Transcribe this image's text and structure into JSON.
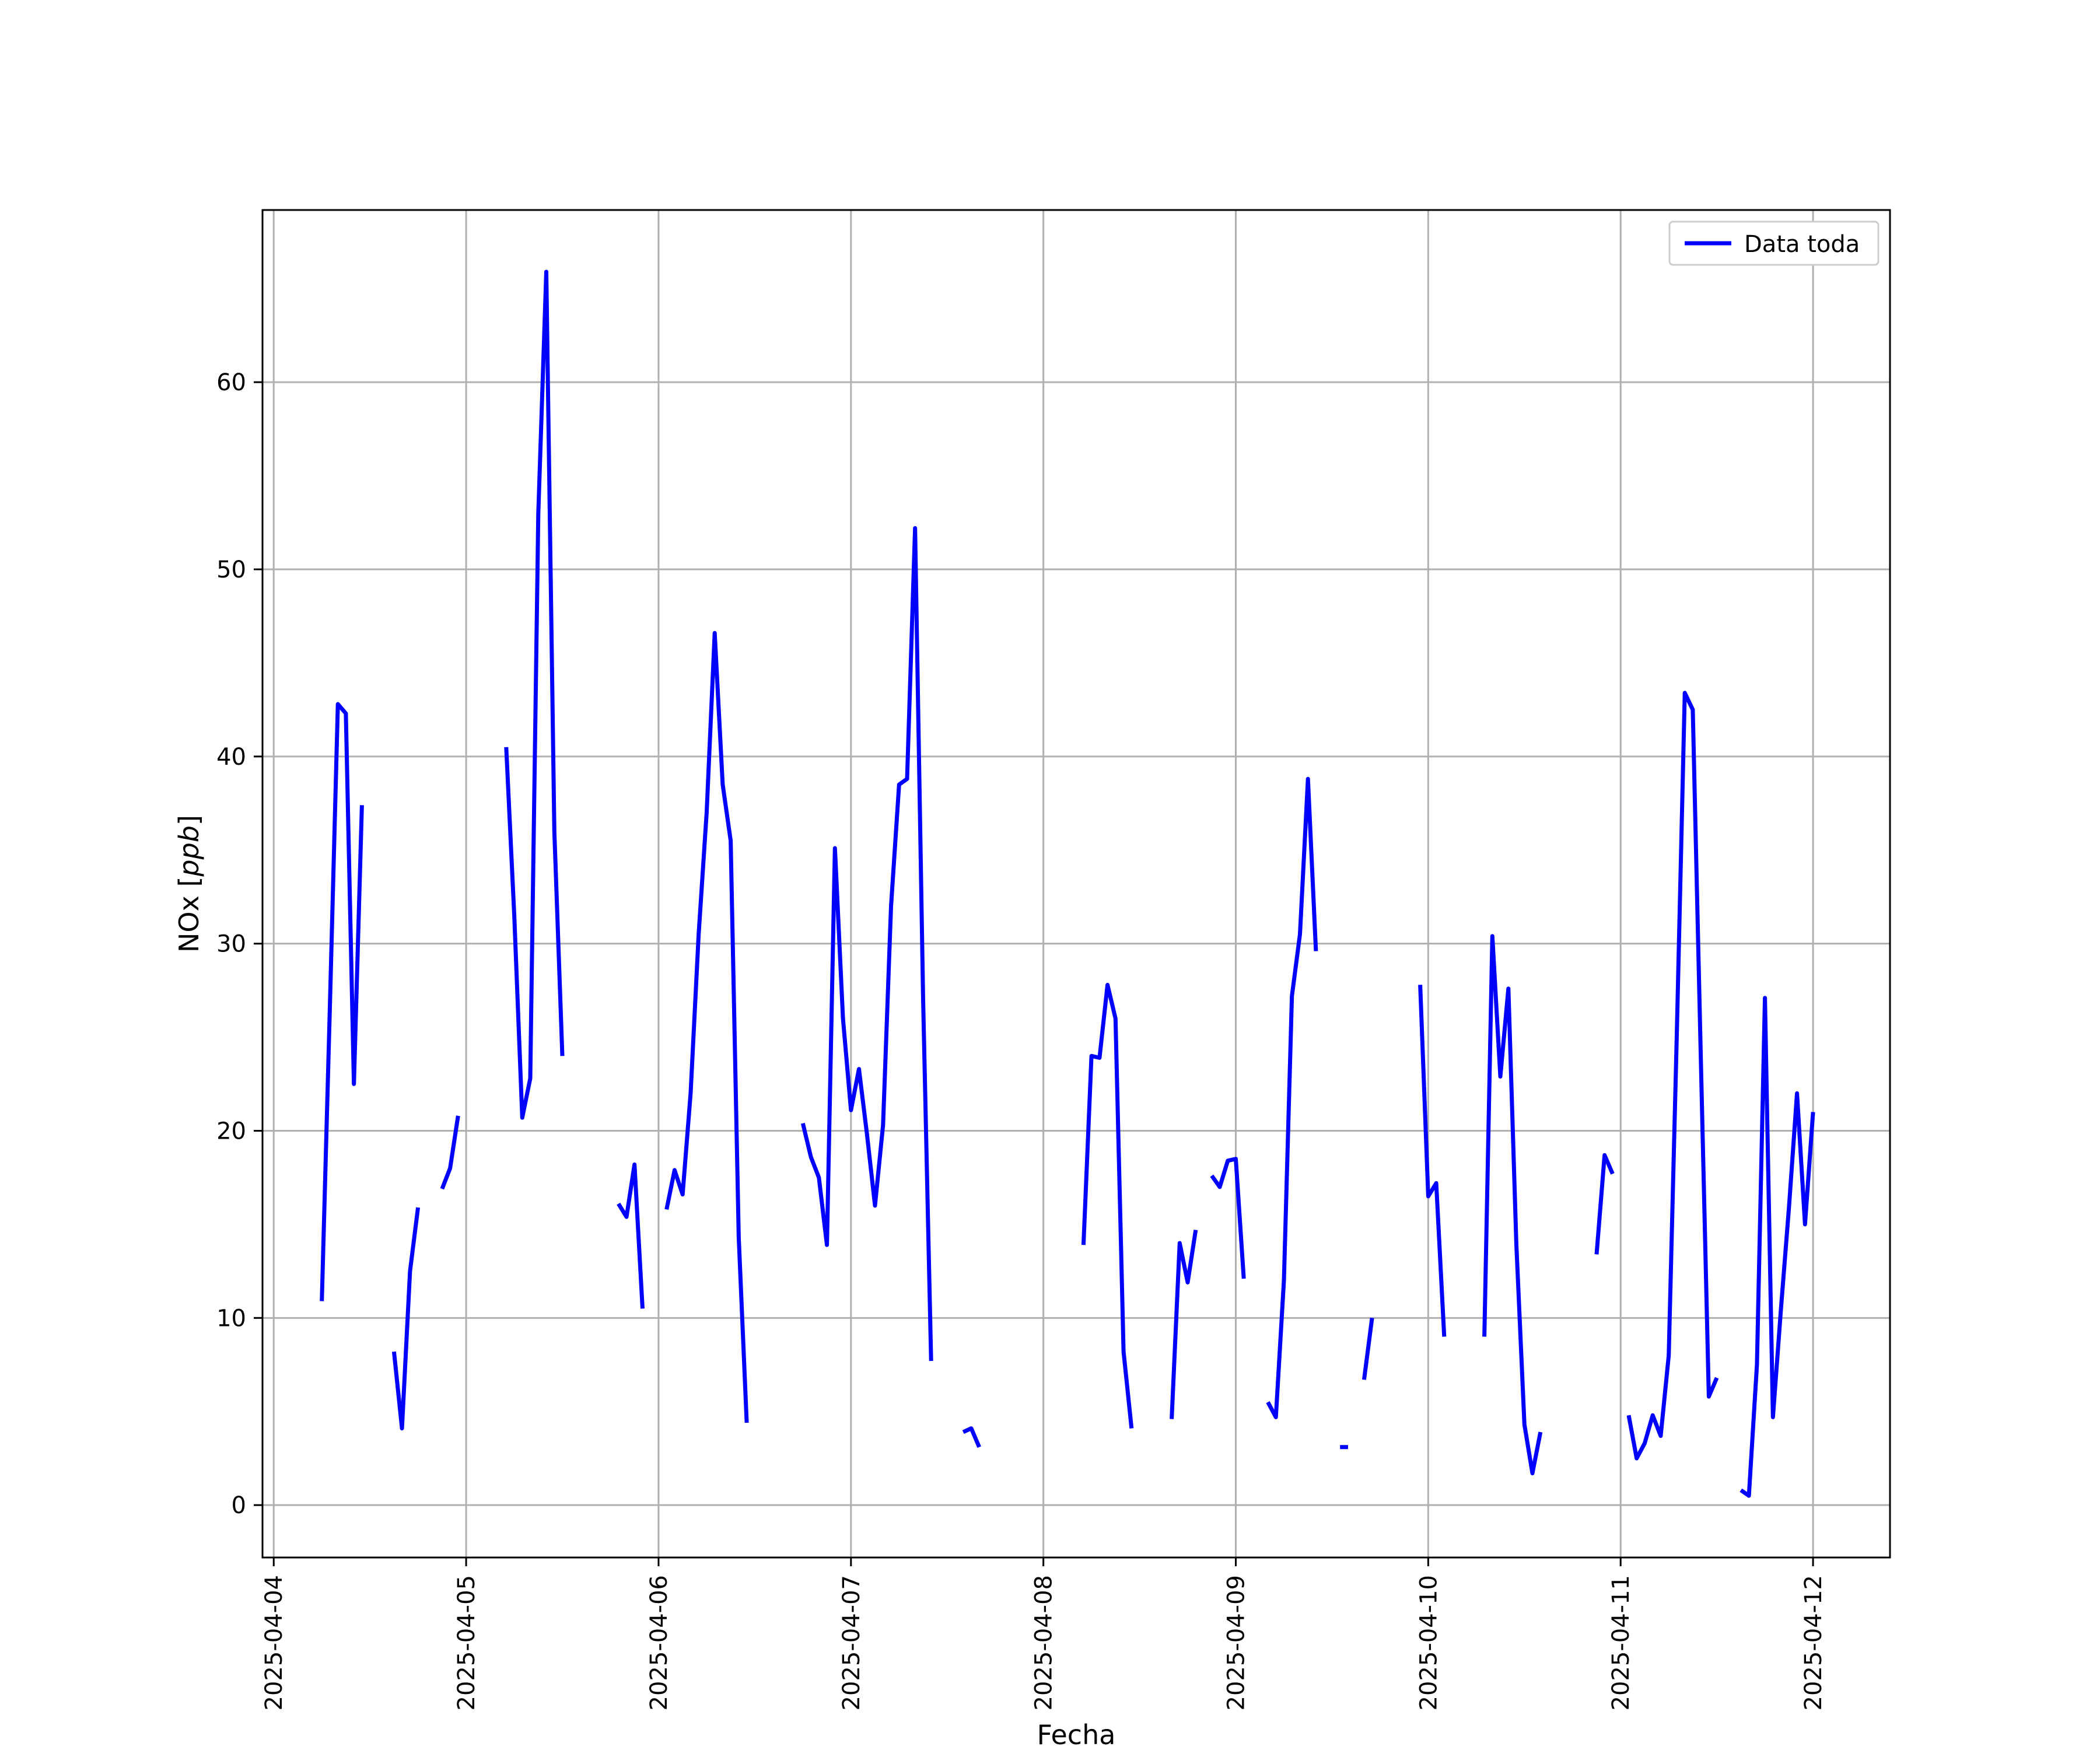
{
  "chart_data": {
    "type": "line",
    "title": "",
    "xlabel": "Fecha",
    "ylabel": "NOx [ppb]",
    "ylabel_main": "NOx",
    "ylabel_unit": "ppb",
    "x_ticks": [
      "2025-04-04",
      "2025-04-05",
      "2025-04-06",
      "2025-04-07",
      "2025-04-08",
      "2025-04-09",
      "2025-04-10",
      "2025-04-11",
      "2025-04-12"
    ],
    "y_ticks": [
      "0",
      "10",
      "20",
      "30",
      "40",
      "50",
      "60"
    ],
    "xlim": [
      "2025-04-03T22:36",
      "2025-04-12T09:36"
    ],
    "ylim": [
      -2.8,
      69.2
    ],
    "grid": true,
    "legend_position": "upper-right",
    "series": [
      {
        "name": "Data toda",
        "color": "#0000ff",
        "segments": [
          [
            [
              "2025-04-04T06:00",
              10.9
            ],
            [
              "2025-04-04T07:00",
              26.5
            ],
            [
              "2025-04-04T08:00",
              42.8
            ],
            [
              "2025-04-04T09:00",
              42.3
            ],
            [
              "2025-04-04T10:00",
              22.5
            ],
            [
              "2025-04-04T11:00",
              37.4
            ]
          ],
          [
            [
              "2025-04-04T15:00",
              8.2
            ],
            [
              "2025-04-04T16:00",
              4.1
            ],
            [
              "2025-04-04T17:00",
              12.5
            ],
            [
              "2025-04-04T18:00",
              15.9
            ]
          ],
          [
            [
              "2025-04-04T21:00",
              16.9
            ],
            [
              "2025-04-04T22:00",
              18.0
            ],
            [
              "2025-04-04T23:00",
              20.8
            ]
          ],
          [
            [
              "2025-04-05T05:00",
              40.5
            ],
            [
              "2025-04-05T06:00",
              31.5
            ],
            [
              "2025-04-05T07:00",
              20.7
            ],
            [
              "2025-04-05T08:00",
              22.8
            ],
            [
              "2025-04-05T09:00",
              53.0
            ],
            [
              "2025-04-05T10:00",
              65.9
            ],
            [
              "2025-04-05T11:00",
              36.0
            ],
            [
              "2025-04-05T12:00",
              24.0
            ]
          ],
          [
            [
              "2025-04-05T19:00",
              16.1
            ],
            [
              "2025-04-05T20:00",
              15.4
            ],
            [
              "2025-04-05T21:00",
              18.2
            ],
            [
              "2025-04-05T22:00",
              10.5
            ]
          ],
          [
            [
              "2025-04-06T01:00",
              15.8
            ],
            [
              "2025-04-06T02:00",
              17.9
            ],
            [
              "2025-04-06T03:00",
              16.6
            ],
            [
              "2025-04-06T04:00",
              22.0
            ],
            [
              "2025-04-06T05:00",
              30.5
            ],
            [
              "2025-04-06T06:00",
              37.0
            ],
            [
              "2025-04-06T07:00",
              46.6
            ],
            [
              "2025-04-06T08:00",
              38.5
            ],
            [
              "2025-04-06T09:00",
              35.5
            ],
            [
              "2025-04-06T10:00",
              14.3
            ],
            [
              "2025-04-06T11:00",
              4.4
            ]
          ],
          [
            [
              "2025-04-06T18:00",
              20.4
            ],
            [
              "2025-04-06T19:00",
              18.6
            ],
            [
              "2025-04-06T20:00",
              17.5
            ],
            [
              "2025-04-06T21:00",
              13.9
            ],
            [
              "2025-04-06T22:00",
              35.1
            ],
            [
              "2025-04-06T23:00",
              26.0
            ],
            [
              "2025-04-07T00:00",
              21.1
            ],
            [
              "2025-04-07T01:00",
              23.3
            ],
            [
              "2025-04-07T02:00",
              19.8
            ],
            [
              "2025-04-07T03:00",
              16.0
            ],
            [
              "2025-04-07T04:00",
              20.3
            ],
            [
              "2025-04-07T05:00",
              32.0
            ],
            [
              "2025-04-07T06:00",
              38.5
            ],
            [
              "2025-04-07T07:00",
              38.8
            ],
            [
              "2025-04-07T08:00",
              52.2
            ],
            [
              "2025-04-07T09:00",
              27.0
            ],
            [
              "2025-04-07T10:00",
              7.7
            ]
          ],
          [
            [
              "2025-04-07T14:00",
              3.9
            ],
            [
              "2025-04-07T15:00",
              4.1
            ],
            [
              "2025-04-07T16:00",
              3.1
            ]
          ],
          [
            [
              "2025-04-08T05:00",
              13.9
            ],
            [
              "2025-04-08T06:00",
              24.0
            ],
            [
              "2025-04-08T07:00",
              23.9
            ],
            [
              "2025-04-08T08:00",
              27.8
            ],
            [
              "2025-04-08T09:00",
              26.0
            ],
            [
              "2025-04-08T10:00",
              8.2
            ],
            [
              "2025-04-08T11:00",
              4.1
            ]
          ],
          [
            [
              "2025-04-08T16:00",
              4.6
            ],
            [
              "2025-04-08T17:00",
              14.0
            ],
            [
              "2025-04-08T18:00",
              11.9
            ],
            [
              "2025-04-08T19:00",
              14.7
            ]
          ],
          [
            [
              "2025-04-08T21:00",
              17.6
            ],
            [
              "2025-04-08T22:00",
              17.0
            ],
            [
              "2025-04-08T23:00",
              18.4
            ],
            [
              "2025-04-09T00:00",
              18.5
            ],
            [
              "2025-04-09T01:00",
              12.1
            ]
          ],
          [
            [
              "2025-04-09T04:00",
              5.5
            ],
            [
              "2025-04-09T05:00",
              4.7
            ],
            [
              "2025-04-09T06:00",
              12.0
            ],
            [
              "2025-04-09T07:00",
              27.2
            ],
            [
              "2025-04-09T08:00",
              30.5
            ],
            [
              "2025-04-09T09:00",
              38.8
            ],
            [
              "2025-04-09T10:00",
              29.6
            ]
          ],
          [
            [
              "2025-04-09T13:00",
              3.1
            ],
            [
              "2025-04-09T14:00",
              3.1
            ]
          ],
          [
            [
              "2025-04-09T16:00",
              6.7
            ],
            [
              "2025-04-09T17:00",
              10.0
            ]
          ],
          [
            [
              "2025-04-09T23:00",
              27.8
            ],
            [
              "2025-04-10T00:00",
              16.5
            ],
            [
              "2025-04-10T01:00",
              17.2
            ],
            [
              "2025-04-10T02:00",
              9.0
            ]
          ],
          [
            [
              "2025-04-10T07:00",
              9.0
            ],
            [
              "2025-04-10T08:00",
              30.4
            ],
            [
              "2025-04-10T09:00",
              22.9
            ],
            [
              "2025-04-10T10:00",
              27.6
            ],
            [
              "2025-04-10T11:00",
              13.9
            ],
            [
              "2025-04-10T12:00",
              4.3
            ],
            [
              "2025-04-10T13:00",
              1.7
            ],
            [
              "2025-04-10T14:00",
              3.9
            ]
          ],
          [
            [
              "2025-04-10T21:00",
              13.4
            ],
            [
              "2025-04-10T22:00",
              18.7
            ],
            [
              "2025-04-10T23:00",
              17.7
            ]
          ],
          [
            [
              "2025-04-11T01:00",
              4.8
            ],
            [
              "2025-04-11T02:00",
              2.5
            ],
            [
              "2025-04-11T03:00",
              3.3
            ],
            [
              "2025-04-11T04:00",
              4.8
            ],
            [
              "2025-04-11T05:00",
              3.7
            ],
            [
              "2025-04-11T06:00",
              8.0
            ],
            [
              "2025-04-11T07:00",
              25.0
            ],
            [
              "2025-04-11T08:00",
              43.4
            ],
            [
              "2025-04-11T09:00",
              42.5
            ],
            [
              "2025-04-11T10:00",
              24.0
            ],
            [
              "2025-04-11T11:00",
              5.8
            ],
            [
              "2025-04-11T12:00",
              6.8
            ]
          ],
          [
            [
              "2025-04-11T15:00",
              0.8
            ],
            [
              "2025-04-11T16:00",
              0.5
            ],
            [
              "2025-04-11T17:00",
              7.5
            ],
            [
              "2025-04-11T18:00",
              27.1
            ],
            [
              "2025-04-11T19:00",
              4.7
            ],
            [
              "2025-04-11T20:00",
              10.5
            ],
            [
              "2025-04-11T21:00",
              15.9
            ],
            [
              "2025-04-11T22:00",
              22.0
            ],
            [
              "2025-04-11T23:00",
              15.0
            ],
            [
              "2025-04-12T00:00",
              21.0
            ]
          ]
        ]
      }
    ]
  }
}
